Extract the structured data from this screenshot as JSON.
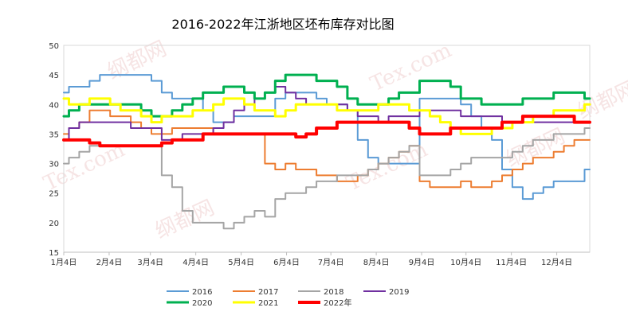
{
  "chart_data": {
    "type": "line",
    "title": "2016-2022年江浙地区坯布库存对比图",
    "ylim": [
      15,
      50
    ],
    "yticks": [
      15,
      20,
      25,
      30,
      35,
      40,
      45,
      50
    ],
    "xlim": [
      1,
      52
    ],
    "xticks": [
      {
        "x": 1,
        "label": "1月4日"
      },
      {
        "x": 5.4,
        "label": "2月4日"
      },
      {
        "x": 9.4,
        "label": "3月4日"
      },
      {
        "x": 13.8,
        "label": "4月4日"
      },
      {
        "x": 18.2,
        "label": "5月4日"
      },
      {
        "x": 22.6,
        "label": "6月4日"
      },
      {
        "x": 26.9,
        "label": "7月4日"
      },
      {
        "x": 31.3,
        "label": "8月4日"
      },
      {
        "x": 35.7,
        "label": "9月4日"
      },
      {
        "x": 40.0,
        "label": "10月4日"
      },
      {
        "x": 44.4,
        "label": "11月4日"
      },
      {
        "x": 48.8,
        "label": "12月4日"
      }
    ],
    "grid": false,
    "legend_position": "bottom",
    "series": [
      {
        "name": "2016",
        "color": "#5b9bd5",
        "width": 2,
        "x": [
          1,
          2,
          3,
          4,
          5,
          6,
          7,
          8,
          9,
          10,
          11,
          12,
          13,
          14,
          15,
          16,
          17,
          18,
          19,
          20,
          21,
          22,
          23,
          24,
          25,
          26,
          27,
          28,
          29,
          30,
          31,
          32,
          33,
          34,
          35,
          36,
          37,
          38,
          39,
          40,
          41,
          42,
          43,
          44,
          45,
          46,
          47,
          48,
          49,
          50,
          51,
          52
        ],
        "y": [
          42,
          43,
          43,
          44,
          45,
          45,
          45,
          45,
          45,
          44,
          42,
          41,
          41,
          41,
          39,
          37,
          37,
          38,
          38,
          38,
          38,
          41,
          42,
          42,
          42,
          41,
          40,
          40,
          39,
          34,
          31,
          30,
          30,
          30,
          30,
          41,
          41,
          41,
          41,
          40,
          38,
          36,
          34,
          29,
          26,
          24,
          25,
          26,
          27,
          27,
          27,
          29
        ]
      },
      {
        "name": "2017",
        "color": "#ed7d31",
        "width": 2,
        "x": [
          1,
          2,
          3,
          4,
          5,
          6,
          7,
          8,
          9,
          10,
          11,
          12,
          13,
          14,
          15,
          16,
          17,
          18,
          19,
          20,
          21,
          22,
          23,
          24,
          25,
          26,
          27,
          28,
          29,
          30,
          31,
          32,
          33,
          34,
          35,
          36,
          37,
          38,
          39,
          40,
          41,
          42,
          43,
          44,
          45,
          46,
          47,
          48,
          49,
          50,
          51,
          52
        ],
        "y": [
          35,
          36,
          37,
          39,
          39,
          38,
          38,
          37,
          36,
          35,
          35,
          36,
          36,
          36,
          36,
          35,
          35,
          35,
          35,
          35,
          30,
          29,
          30,
          29,
          29,
          28,
          28,
          27,
          27,
          28,
          29,
          30,
          31,
          32,
          33,
          27,
          26,
          26,
          26,
          27,
          26,
          26,
          27,
          28,
          29,
          30,
          31,
          31,
          32,
          33,
          34,
          34
        ]
      },
      {
        "name": "2018",
        "color": "#a5a5a5",
        "width": 2,
        "x": [
          1,
          2,
          3,
          4,
          5,
          6,
          7,
          8,
          9,
          10,
          11,
          12,
          13,
          14,
          15,
          16,
          17,
          18,
          19,
          20,
          21,
          22,
          23,
          24,
          25,
          26,
          27,
          28,
          29,
          30,
          31,
          32,
          33,
          34,
          35,
          36,
          37,
          38,
          39,
          40,
          41,
          42,
          43,
          44,
          45,
          46,
          47,
          48,
          49,
          50,
          51,
          52
        ],
        "y": [
          30,
          31,
          32,
          33,
          33,
          33,
          33,
          33,
          33,
          33,
          28,
          26,
          22,
          20,
          20,
          20,
          19,
          20,
          21,
          22,
          21,
          24,
          25,
          25,
          26,
          27,
          27,
          28,
          28,
          28,
          29,
          30,
          31,
          32,
          33,
          28,
          28,
          28,
          29,
          30,
          31,
          31,
          31,
          31,
          32,
          33,
          34,
          34,
          35,
          35,
          35,
          36
        ]
      },
      {
        "name": "2019",
        "color": "#7030a0",
        "width": 2,
        "x": [
          1,
          2,
          3,
          4,
          5,
          6,
          7,
          8,
          9,
          10,
          11,
          12,
          13,
          14,
          15,
          16,
          17,
          18,
          19,
          20,
          21,
          22,
          23,
          24,
          25,
          26,
          27,
          28,
          29,
          30,
          31,
          32,
          33,
          34,
          35,
          36,
          37,
          38,
          39,
          40,
          41,
          42,
          43,
          44,
          45,
          46,
          47,
          48,
          49,
          50,
          51,
          52
        ],
        "y": [
          34,
          36,
          37,
          37,
          37,
          37,
          37,
          36,
          36,
          36,
          34,
          34,
          35,
          35,
          35,
          36,
          37,
          39,
          40,
          41,
          42,
          43,
          42,
          41,
          40,
          40,
          40,
          40,
          39,
          38,
          38,
          37,
          38,
          38,
          38,
          39,
          39,
          39,
          39,
          38,
          38,
          38,
          38,
          37,
          37,
          37,
          37,
          37,
          37,
          37,
          37,
          37
        ]
      },
      {
        "name": "2020",
        "color": "#00b050",
        "width": 3,
        "x": [
          1,
          2,
          3,
          4,
          5,
          6,
          7,
          8,
          9,
          10,
          11,
          12,
          13,
          14,
          15,
          16,
          17,
          18,
          19,
          20,
          21,
          22,
          23,
          24,
          25,
          26,
          27,
          28,
          29,
          30,
          31,
          32,
          33,
          34,
          35,
          36,
          37,
          38,
          39,
          40,
          41,
          42,
          43,
          44,
          45,
          46,
          47,
          48,
          49,
          50,
          51,
          52
        ],
        "y": [
          38,
          39,
          40,
          40,
          40,
          40,
          40,
          40,
          39,
          38,
          38,
          39,
          40,
          41,
          42,
          42,
          43,
          43,
          42,
          41,
          42,
          44,
          45,
          45,
          45,
          44,
          44,
          43,
          41,
          40,
          40,
          40,
          41,
          42,
          42,
          44,
          44,
          44,
          43,
          41,
          41,
          40,
          40,
          40,
          40,
          41,
          41,
          41,
          42,
          42,
          42,
          41
        ]
      },
      {
        "name": "2021",
        "color": "#ffff00",
        "width": 3,
        "x": [
          1,
          2,
          3,
          4,
          5,
          6,
          7,
          8,
          9,
          10,
          11,
          12,
          13,
          14,
          15,
          16,
          17,
          18,
          19,
          20,
          21,
          22,
          23,
          24,
          25,
          26,
          27,
          28,
          29,
          30,
          31,
          32,
          33,
          34,
          35,
          36,
          37,
          38,
          39,
          40,
          41,
          42,
          43,
          44,
          45,
          46,
          47,
          48,
          49,
          50,
          51,
          52
        ],
        "y": [
          41,
          40,
          40,
          41,
          41,
          40,
          39,
          39,
          38,
          37,
          38,
          38,
          38,
          39,
          39,
          40,
          41,
          41,
          40,
          39,
          39,
          38,
          39,
          40,
          40,
          40,
          40,
          39,
          39,
          39,
          39,
          40,
          40,
          40,
          39,
          39,
          38,
          37,
          36,
          35,
          35,
          35,
          36,
          36,
          37,
          37,
          38,
          38,
          39,
          39,
          39,
          40
        ]
      },
      {
        "name": "2022年",
        "color": "#ff0000",
        "width": 4,
        "x": [
          1,
          2,
          3,
          4,
          5,
          6,
          7,
          8,
          9,
          10,
          11,
          12,
          13,
          14,
          15,
          16,
          17,
          18,
          19,
          20,
          21,
          22,
          23,
          24,
          25,
          26,
          27,
          28,
          29,
          30,
          31,
          32,
          33,
          34,
          35,
          36,
          37,
          38,
          39,
          40,
          41,
          42,
          43,
          44,
          45,
          46,
          47,
          48,
          49,
          50,
          51,
          52
        ],
        "y": [
          34,
          34,
          34,
          33.5,
          33,
          33,
          33,
          33,
          33,
          33,
          33.5,
          34,
          34,
          34,
          35,
          35,
          35,
          35,
          35,
          35,
          35,
          35,
          35,
          34.5,
          35,
          36,
          36,
          37,
          37,
          37,
          37,
          37,
          37,
          37,
          36,
          35,
          35,
          35,
          36,
          36,
          36,
          36,
          36,
          37,
          37,
          38,
          38,
          38,
          38,
          38,
          37,
          37
        ]
      }
    ]
  },
  "watermarks": [
    "纲都网",
    "Tex.com"
  ]
}
